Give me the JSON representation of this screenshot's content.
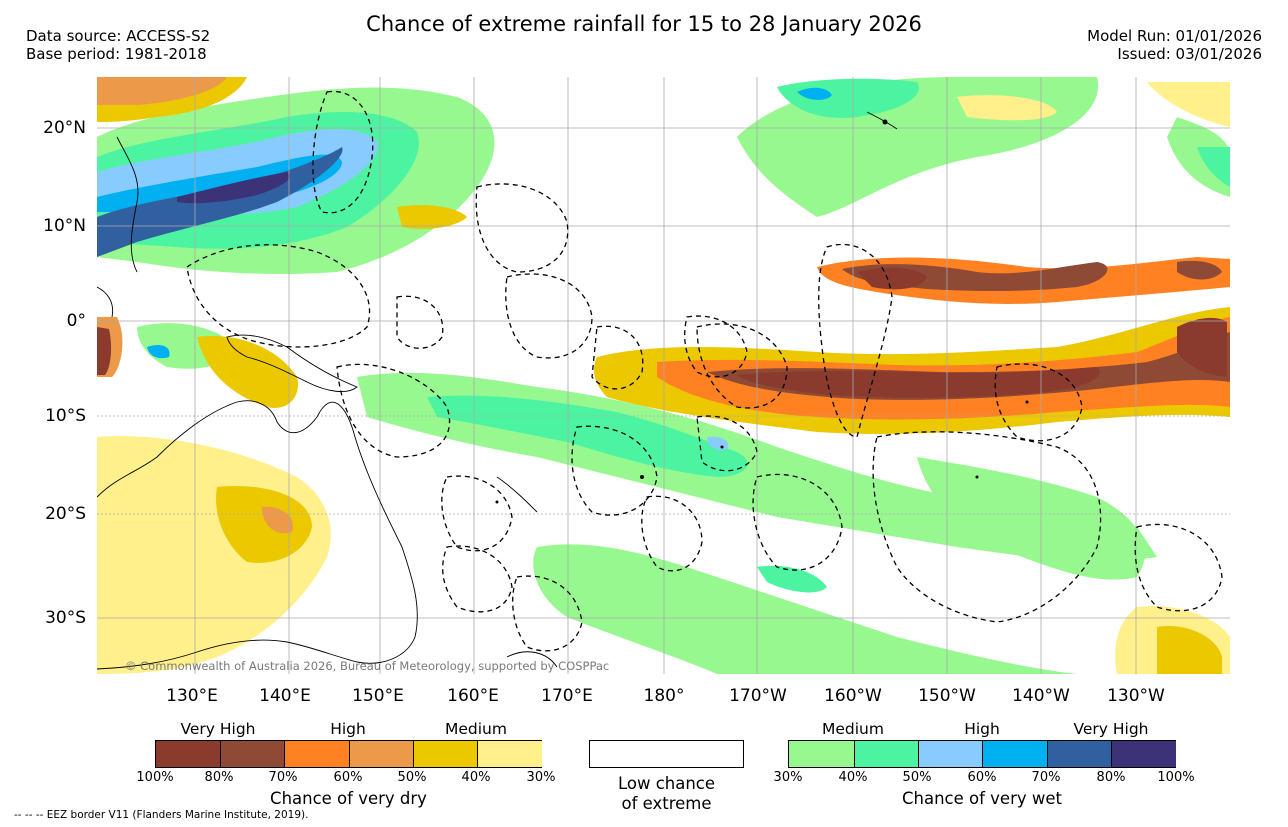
{
  "header": {
    "title": "Chance of extreme rainfall for 15 to 28 January 2026",
    "data_source": "Data source: ACCESS-S2",
    "base_period": "Base period: 1981-2018",
    "model_run": "Model Run: 01/01/2026",
    "issued": "Issued: 03/01/2026"
  },
  "map": {
    "lat_labels": [
      "20°N",
      "10°N",
      "0°",
      "10°S",
      "20°S",
      "30°S"
    ],
    "lon_labels": [
      "130°E",
      "140°E",
      "150°E",
      "160°E",
      "170°E",
      "180°",
      "170°W",
      "160°W",
      "150°W",
      "140°W",
      "130°W"
    ],
    "copyright": "© Commonwealth of Australia 2026, Bureau of Meteorology, supported by COSPPac"
  },
  "legend": {
    "dry": {
      "category_labels": [
        "Very High",
        "High",
        "Medium"
      ],
      "tick_labels": [
        "100%",
        "80%",
        "70%",
        "60%",
        "50%",
        "40%",
        "30%"
      ],
      "caption": "Chance of very dry",
      "colors": [
        "#8b3a2e",
        "#8e4a35",
        "#ff8122",
        "#ec9a4a",
        "#ebc800",
        "#fff08c"
      ]
    },
    "low": {
      "caption_line1": "Low chance",
      "caption_line2": "of extreme",
      "color": "#ffffff"
    },
    "wet": {
      "category_labels": [
        "Medium",
        "High",
        "Very High"
      ],
      "tick_labels": [
        "30%",
        "40%",
        "50%",
        "60%",
        "70%",
        "80%",
        "100%"
      ],
      "caption": "Chance of very wet",
      "colors": [
        "#98f890",
        "#4cf4a2",
        "#88ccff",
        "#00b0f0",
        "#3060a0",
        "#3b3278"
      ]
    }
  },
  "footnote": "-- -- -- EEZ border V11 (Flanders Marine Institute, 2019)."
}
